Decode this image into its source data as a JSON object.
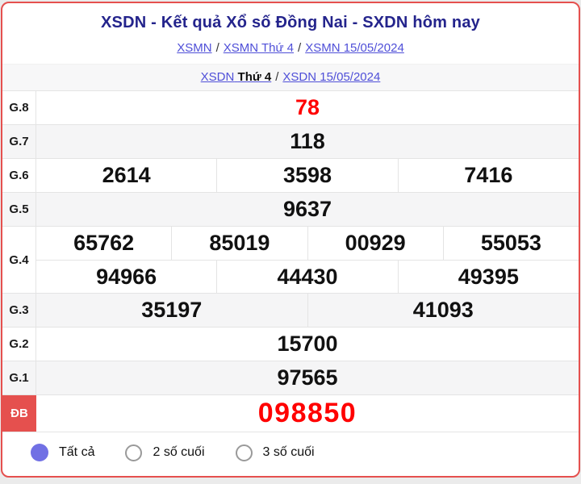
{
  "header": {
    "title": "XSDN - Kết quả Xổ số Đồng Nai - SXDN hôm nay",
    "separator": "/",
    "breadcrumb_xsmn": [
      {
        "label": "XSMN"
      },
      {
        "label": "XSMN Thứ 4"
      },
      {
        "label": "XSMN 15/05/2024"
      }
    ],
    "breadcrumb_xsdn": {
      "link_prefix": "XSDN",
      "link_bold": "Thứ 4",
      "date_link": "XSDN 15/05/2024"
    }
  },
  "results": {
    "rows": [
      {
        "label": "G.8",
        "values": [
          "78"
        ],
        "highlight": true
      },
      {
        "label": "G.7",
        "values": [
          "118"
        ]
      },
      {
        "label": "G.6",
        "values": [
          "2614",
          "3598",
          "7416"
        ]
      },
      {
        "label": "G.5",
        "values": [
          "9637"
        ]
      },
      {
        "label": "G.4",
        "lines": [
          [
            "65762",
            "85019",
            "00929",
            "55053"
          ],
          [
            "94966",
            "44430",
            "49395"
          ]
        ]
      },
      {
        "label": "G.3",
        "values": [
          "35197",
          "41093"
        ]
      },
      {
        "label": "G.2",
        "values": [
          "15700"
        ]
      },
      {
        "label": "G.1",
        "values": [
          "97565"
        ]
      },
      {
        "label": "ĐB",
        "values": [
          "098850"
        ],
        "highlight": true,
        "special": true
      }
    ]
  },
  "filters": {
    "options": [
      {
        "label": "Tất cả",
        "selected": true
      },
      {
        "label": "2 số cuối",
        "selected": false
      },
      {
        "label": "3 số cuối",
        "selected": false
      }
    ]
  },
  "colors": {
    "card_border": "#e5504e",
    "title_text": "#24248c",
    "link_text": "#4f4fd8",
    "highlight_number": "#ff0000",
    "special_label_bg": "#e5504e",
    "radio_selected": "#7170e4",
    "shaded_row_bg": "#f5f5f6"
  }
}
